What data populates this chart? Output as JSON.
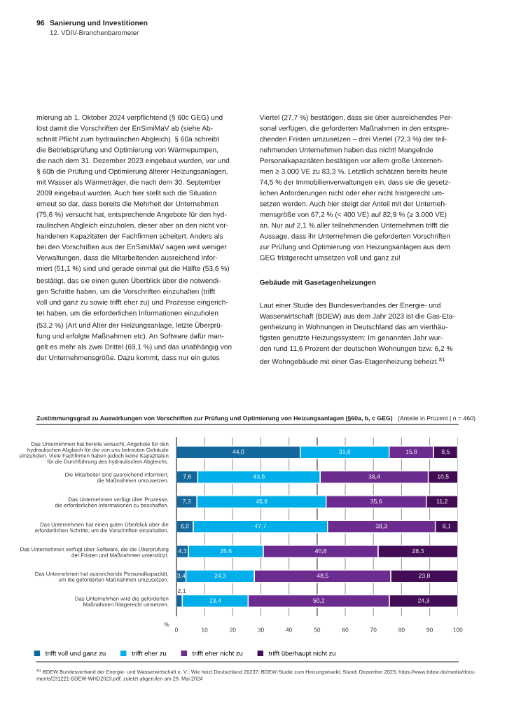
{
  "chart_data": {
    "type": "bar",
    "orientation": "horizontal",
    "stacked": true,
    "title": "Zustimmungsgrad zu Auswirkungen von Vorschriften zur Prüfung und Optimierung von Heizungsanlagen (§60a, b, c GEG)",
    "subtitle": "(Anteile in Prozent | n = 460)",
    "xlabel": "%",
    "categories": [
      "Das Unternehmen hat bereits versucht, Angebote für den\nhydraulischen Abgleich für die von uns betreuten Gebäude\neinzuholen. Viele Fachfirmen haben jedoch keine Kapazitäten\nfür die Durchführung des hydraulischen Abgleichs.",
      "Die Mitarbeiter sind ausreichend informiert,\ndie Maßnahmen umzusetzen.",
      "Das Unternehmen verfügt über Prozesse,\ndie erforderlichen Informationen zu beschaffen.",
      "Das Unternehmen hat einen guten Überblick über die\nerforderlichen Schritte, um die Vorschriften einzuhalten.",
      "Das Unternehmen verfügt über Software, die die Überprüfung\nder Fristen und Maßnahmen unterstützt.",
      "Das Unternehmen hat ausreichende Personalkapazität,\num die geforderten Maßnahmen umzusetzen.",
      "Das Unternehmen wird die geforderten\nMaßnahmen fristgerecht umsetzen."
    ],
    "series": [
      {
        "name": "trifft voll und ganz zu",
        "color": "#15689c",
        "values": [
          44.0,
          7.6,
          7.3,
          6.0,
          4.3,
          3.4,
          2.1
        ],
        "value_labels": [
          "44,0",
          "7,6",
          "7,3",
          "6,0",
          "4,3",
          "3,4",
          "2,1"
        ]
      },
      {
        "name": "trifft eher zu",
        "color": "#00aeea",
        "values": [
          31.6,
          43.5,
          45.9,
          47.7,
          26.6,
          24.3,
          23.4
        ],
        "value_labels": [
          "31,6",
          "43,5",
          "45,9",
          "47,7",
          "26,6",
          "24,3",
          "23,4"
        ]
      },
      {
        "name": "trifft eher nicht zu",
        "color": "#6c2c8f",
        "values": [
          15.8,
          38.4,
          35.6,
          38.3,
          40.8,
          48.5,
          50.2
        ],
        "value_labels": [
          "15,8",
          "38,4",
          "35,6",
          "38,3",
          "40,8",
          "48,5",
          "50,2"
        ]
      },
      {
        "name": "trifft überhaupt nicht zu",
        "color": "#420d55",
        "values": [
          8.5,
          10.5,
          11.2,
          8.1,
          28.3,
          23.8,
          24.3
        ],
        "value_labels": [
          "8,5",
          "10,5",
          "11,2",
          "8,1",
          "28,3",
          "23,8",
          "24,3"
        ]
      }
    ],
    "xlim": [
      0,
      100
    ],
    "xticks": [
      0,
      10,
      20,
      30,
      40,
      50,
      60,
      70,
      80,
      90,
      100
    ],
    "grid": "x",
    "ref_lines": [
      {
        "axis": "x",
        "value": 50,
        "color": "#333333"
      }
    ],
    "legend": "bottom left",
    "annotations": [
      "96",
      "Sanierung und Investitionen",
      "12. VDIV-Branchenbarometer",
      "mierung ab 1. Oktober 2024 verpflichtend (§ 60c GEG) und\nlöst damit die Vorschriften der EnSimiMaV ab (siehe Ab-\nschnitt Pflicht zum hydraulischen Abgleich). § 60a schreibt\ndie Betriebsprüfung und Optimierung von Wärmepumpen,\ndie nach dem 31. Dezember 2023 eingebaut wurden, vor und\n§ 60b die Prüfung und Optimierung älterer Heizungsanlagen,\nmit Wasser als Wärmeträger, die nach dem 30. September\n2009 eingebaut wurden. Auch hier stellt sich die Situation\nerneut so dar, dass bereits die Mehrheit der Unternehmen\n(75,6 %) versucht hat, entsprechende Angebote für den hyd-\nraulischen Abgleich einzuholen, dieser aber an den nicht vor-\nhandenen Kapazitäten der Fachfirmen scheitert. Anders als\nbei den Vorschriften aus der EnSimiMaV sagen weit weniger\nVerwaltungen, dass die Mitarbeitenden ausreichend infor-\nmiert (51,1 %) sind und gerade einmal gut die Hälfte (53,6 %)\nbestätigt, das sie einen guten Überblick über die notwendi-\ngen Schritte haben, um die Vorschriften einzuhalten (trifft\nvoll und ganz zu sowie trifft eher zu) und Prozesse eingerich-\ntet haben, um die erforderlichen Informationen einzuholen\n(53,2 %) (Art und Alter der Heizungsanlage, letzte Überprü-\nfung und erfolgte Maßnahmen etc). An Software dafür man-\ngelt es mehr als zwei Drittel (69,1 %) und das unabhängig von\nder Unternehmensgröße. Dazu kommt, dass nur ein gutes",
      "Viertel (27,7 %) bestätigen, dass sie über ausreichendes Per-\nsonal verfügen, die geforderten Maßnahmen in den entspre-\nchenden Fristen umzusetzen – drei Viertel (72,3 %) der teil-\nnehmenden Unternehmen haben das nicht! Mangelnde\nPersonalkapazitäten bestätigen vor allem große Unterneh-\nmen ≥ 3.000 VE zu 83,3 %. Letztlich schätzen bereits heute\n74,5 % der Immobilienverwaltungen ein, dass sie die gesetz-\nlichen Anforderungen nicht oder eher nicht fristgerecht um-\nsetzen werden. Auch hier steigt der Anteil mit der Unterneh-\nmensgröße von 67,2 % (< 400 VE) auf 82,9 % (≥ 3.000 VE)\nan. Nur auf 2,1 % aller teilnehmenden Unternehmen trifft die\nAussage, dass ihr Unternehmen die geforderten Vorschriften\nzur Prüfung und Optimierung von Heizungsanlagen aus dem\nGEG fristgerecht umsetzen voll und ganz zu!",
      "Gebäude mit Gasetagenheizungen",
      "Laut einer Studie des Bundesverbandes der Energie- und\nWasserwirtschaft (BDEW) aus dem Jahr 2023 ist die Gas-Eta-\ngenheizung in Wohnungen in Deutschland das am vierthäu-\nfigsten genutzte Heizungssystem: Im genannten Jahr wur-\nden rund 11,6 Prozent der deutschen Wohnungen bzw. 6,2 %\nder Wohngebäude mit einer Gas-Etagenheizung beheizt.$^{81}$",
      "$^{81}$ BDEW Bundesverband der Energie- und Wasserwirtschaft e. V.: Wie heizt Deutschland 2023?; BDEW-Studie zum Heizungsmarkt; Stand: Dezember 2023; https://www.bdew.de/media/docu-\nments/231221-BDEW-WHD2023.pdf; zuletzt abgerufen am 29. Mai 2024"
    ]
  }
}
